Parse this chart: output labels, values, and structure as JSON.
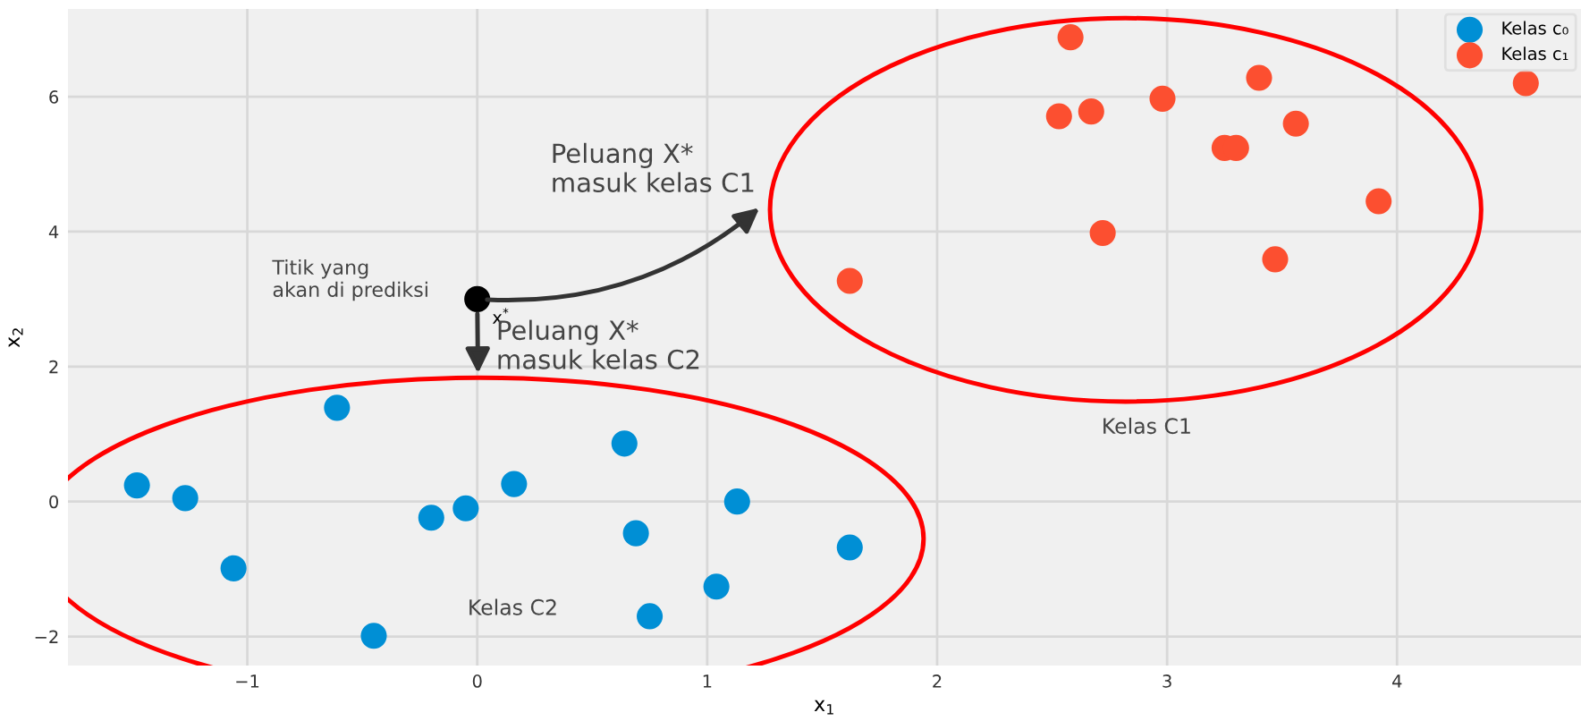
{
  "chart_data": {
    "type": "scatter",
    "xlabel": "x$_{1}$",
    "ylabel": "x$_{2}$",
    "xlim": [
      -1.78,
      4.8
    ],
    "ylim": [
      -2.43,
      7.3
    ],
    "xticks": [
      {
        "value": -1,
        "label": "−1"
      },
      0,
      1,
      2,
      3,
      4
    ],
    "yticks": [
      {
        "value": -2,
        "label": "−2"
      },
      0,
      2,
      4,
      6
    ],
    "grid": true,
    "legend": "top right",
    "marker": "circle",
    "series": [
      {
        "name": "Kelas c₀",
        "color": "#008fd5",
        "x": [
          -1.48,
          -1.27,
          -1.06,
          -0.61,
          -0.45,
          -0.2,
          -0.05,
          0.16,
          0.64,
          0.69,
          0.75,
          1.04,
          1.13,
          1.62
        ],
        "values": [
          0.24,
          0.05,
          -0.99,
          1.39,
          -1.99,
          -0.24,
          -0.1,
          0.26,
          0.86,
          -0.47,
          -1.7,
          -1.26,
          0.0,
          -0.68
        ]
      },
      {
        "name": "Kelas c₁",
        "color": "#fc4f30",
        "x": [
          2.58,
          2.53,
          2.67,
          2.98,
          3.4,
          3.56,
          3.25,
          3.3,
          3.92,
          2.72,
          3.47,
          1.62,
          4.56
        ],
        "values": [
          6.88,
          5.71,
          5.78,
          5.97,
          6.28,
          5.6,
          5.24,
          5.24,
          4.45,
          3.98,
          3.59,
          3.27,
          6.2
        ]
      },
      {
        "color": "#000000",
        "x": [
          0
        ],
        "values": [
          3.0
        ]
      }
    ],
    "annotations": [
      {
        "text": "x$^{*}$",
        "x": 0,
        "y": 3.0
      },
      "Titik yang\nakan di prediksi",
      "Peluang X*\nmasuk kelas C1",
      "Peluang X*\nmasuk kelas C2",
      "Kelas C1",
      "Kelas C2"
    ]
  }
}
